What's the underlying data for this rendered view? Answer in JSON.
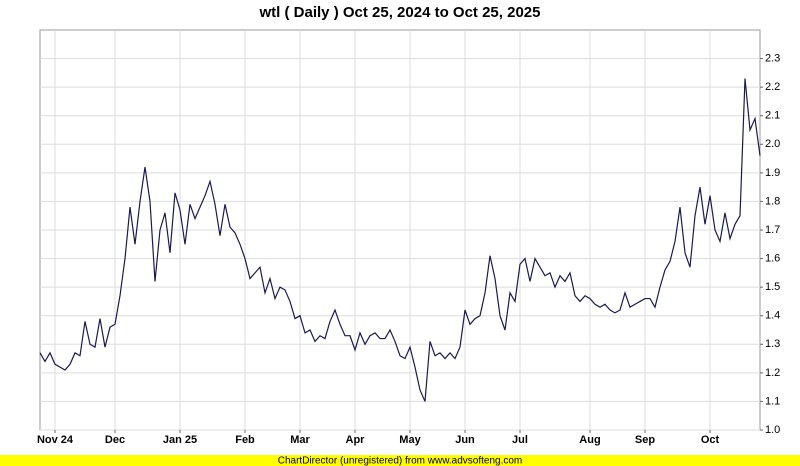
{
  "chart_data": {
    "type": "line",
    "title": "wtl ( Daily ) Oct 25, 2024 to Oct 25, 2025",
    "footer": "ChartDirector (unregistered) from www.advsofteng.com",
    "color": "#1a1a4e",
    "grid": true,
    "y_axis_side": "right",
    "ylim": [
      1.0,
      2.4
    ],
    "yticks": [
      {
        "value": 1.0,
        "label": "1.0"
      },
      1.1,
      1.2,
      1.3,
      1.4,
      1.5,
      1.6,
      1.7,
      1.8,
      1.9,
      {
        "value": 2.0,
        "label": "2.0"
      },
      2.1,
      2.2,
      2.3
    ],
    "categories": [
      null,
      null,
      null,
      "Nov 24",
      null,
      null,
      null,
      null,
      null,
      null,
      null,
      null,
      null,
      null,
      null,
      "Dec",
      null,
      null,
      null,
      null,
      null,
      null,
      null,
      null,
      null,
      null,
      null,
      null,
      "Jan 25",
      null,
      null,
      null,
      null,
      null,
      null,
      null,
      null,
      null,
      null,
      null,
      null,
      "Feb",
      null,
      null,
      null,
      null,
      null,
      null,
      null,
      null,
      null,
      null,
      "Mar",
      null,
      null,
      null,
      null,
      null,
      null,
      null,
      null,
      null,
      null,
      "Apr",
      null,
      null,
      null,
      null,
      null,
      null,
      null,
      null,
      null,
      null,
      "May",
      null,
      null,
      null,
      null,
      null,
      null,
      null,
      null,
      null,
      null,
      "Jun",
      null,
      null,
      null,
      null,
      null,
      null,
      null,
      null,
      null,
      null,
      "Jul",
      null,
      null,
      null,
      null,
      null,
      null,
      null,
      null,
      null,
      null,
      null,
      null,
      null,
      "Aug",
      null,
      null,
      null,
      null,
      null,
      null,
      null,
      null,
      null,
      null,
      "Sep",
      null,
      null,
      null,
      null,
      null,
      null,
      null,
      null,
      null,
      null,
      null,
      null,
      "Oct",
      null,
      null,
      null,
      null,
      null,
      null,
      null,
      null,
      null,
      null
    ],
    "values": [
      1.27,
      1.24,
      1.27,
      1.23,
      1.22,
      1.21,
      1.23,
      1.27,
      1.26,
      1.38,
      1.3,
      1.29,
      1.39,
      1.29,
      1.36,
      1.37,
      1.47,
      1.6,
      1.78,
      1.65,
      1.8,
      1.92,
      1.8,
      1.52,
      1.7,
      1.76,
      1.62,
      1.83,
      1.77,
      1.65,
      1.79,
      1.74,
      1.78,
      1.82,
      1.87,
      1.79,
      1.68,
      1.79,
      1.71,
      1.69,
      1.65,
      1.6,
      1.53,
      1.55,
      1.57,
      1.48,
      1.53,
      1.46,
      1.5,
      1.49,
      1.45,
      1.39,
      1.4,
      1.34,
      1.35,
      1.31,
      1.33,
      1.32,
      1.38,
      1.42,
      1.37,
      1.33,
      1.33,
      1.28,
      1.34,
      1.3,
      1.33,
      1.34,
      1.32,
      1.32,
      1.35,
      1.31,
      1.26,
      1.25,
      1.29,
      1.22,
      1.14,
      1.1,
      1.31,
      1.26,
      1.27,
      1.25,
      1.27,
      1.25,
      1.29,
      1.42,
      1.37,
      1.39,
      1.4,
      1.48,
      1.61,
      1.53,
      1.4,
      1.35,
      1.48,
      1.45,
      1.58,
      1.6,
      1.52,
      1.6,
      1.57,
      1.54,
      1.55,
      1.5,
      1.54,
      1.52,
      1.55,
      1.47,
      1.45,
      1.47,
      1.46,
      1.44,
      1.43,
      1.44,
      1.42,
      1.41,
      1.42,
      1.48,
      1.43,
      1.44,
      1.45,
      1.46,
      1.46,
      1.43,
      1.5,
      1.56,
      1.59,
      1.66,
      1.78,
      1.62,
      1.57,
      1.75,
      1.85,
      1.72,
      1.82,
      1.7,
      1.66,
      1.76,
      1.67,
      1.72,
      1.75,
      2.23,
      2.05,
      2.09,
      1.96
    ]
  }
}
